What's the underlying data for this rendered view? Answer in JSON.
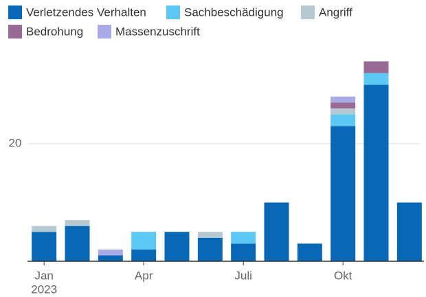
{
  "chart_data": {
    "type": "stacked_bar",
    "categories": [
      "Jan",
      null,
      null,
      "Apr",
      null,
      null,
      "Juli",
      null,
      null,
      "Okt",
      null,
      null
    ],
    "year_label": "2023",
    "series": [
      {
        "name": "Verletzendes Verhalten",
        "color": "#0868b6",
        "values": [
          5,
          6,
          1,
          2,
          5,
          4,
          3,
          10,
          3,
          23,
          30,
          10
        ]
      },
      {
        "name": "Sachbeschädigung",
        "color": "#5cc8f3",
        "values": [
          0,
          0,
          0,
          3,
          0,
          0,
          2,
          0,
          0,
          2,
          2,
          0
        ]
      },
      {
        "name": "Angriff",
        "color": "#b6c8d2",
        "values": [
          1,
          1,
          0,
          0,
          0,
          1,
          0,
          0,
          0,
          1,
          0,
          0
        ]
      },
      {
        "name": "Bedrohung",
        "color": "#9a6a96",
        "values": [
          0,
          0,
          0,
          0,
          0,
          0,
          0,
          0,
          0,
          1,
          2,
          0
        ]
      },
      {
        "name": "Massenzuschrift",
        "color": "#aaabe6",
        "values": [
          0,
          0,
          1,
          0,
          0,
          0,
          0,
          0,
          0,
          1,
          0,
          0
        ]
      }
    ],
    "ylim": [
      0,
      35
    ],
    "yticks": [
      20
    ],
    "grid": true
  }
}
